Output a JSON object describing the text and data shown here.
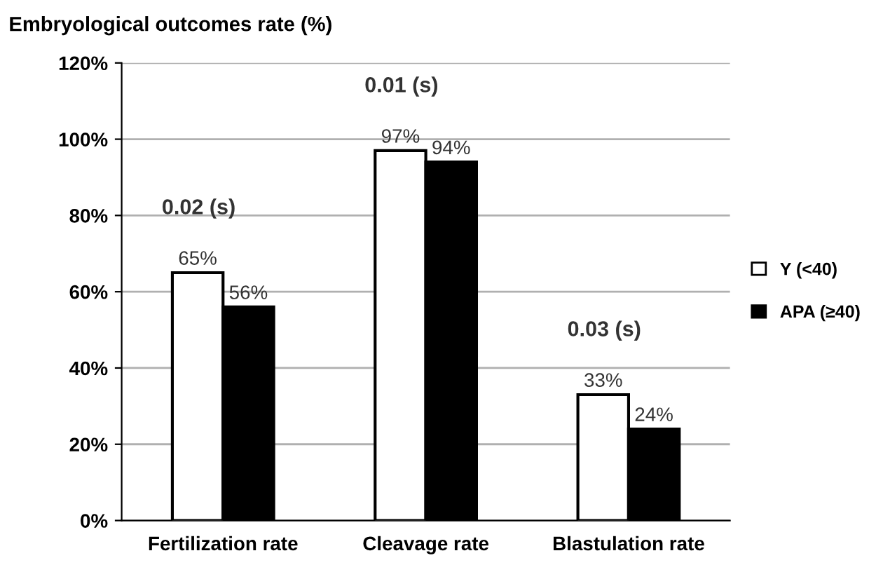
{
  "chart_data": {
    "type": "bar",
    "ylabel": "Embryological outcomes rate (%)",
    "categories": [
      "Fertilization rate",
      "Cleavage rate",
      "Blastulation rate"
    ],
    "series": [
      {
        "name": "Y (<40)",
        "color": "#ffffff",
        "values": [
          65,
          97,
          33
        ],
        "value_labels": [
          "65%",
          "97%",
          "33%"
        ]
      },
      {
        "name": "APA (≥40)",
        "color": "#000000",
        "values": [
          56,
          94,
          24
        ],
        "value_labels": [
          "56%",
          "94%",
          "24%"
        ]
      }
    ],
    "ylim": [
      0,
      120
    ],
    "yticks": [
      {
        "value": 0,
        "label": "0%"
      },
      {
        "value": 20,
        "label": "20%"
      },
      {
        "value": 40,
        "label": "40%"
      },
      {
        "value": 60,
        "label": "60%"
      },
      {
        "value": 80,
        "label": "80%"
      },
      {
        "value": 100,
        "label": "100%"
      },
      {
        "value": 120,
        "label": "120%"
      }
    ],
    "annotations": [
      "0.02 (s)",
      "0.01 (s)",
      "0.03 (s)"
    ],
    "grid": "y",
    "legend": "right"
  }
}
